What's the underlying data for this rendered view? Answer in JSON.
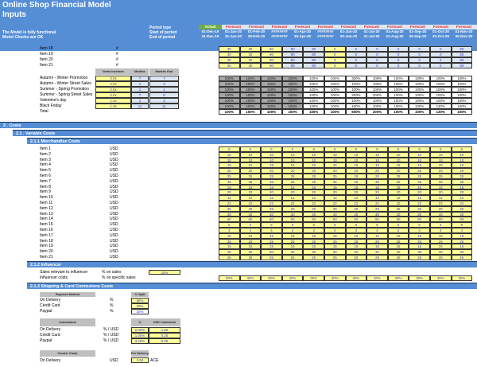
{
  "header": {
    "title": "Online Shop Financial Model",
    "subtitle": "Inputs",
    "status1": "The Model is fully functional",
    "status2": "Model Checks are OK",
    "period_type_label": "Period type",
    "start_label": "Start of period",
    "end_label": "End of period"
  },
  "periods": {
    "types": [
      "Actual",
      "Forecast",
      "Forecast",
      "Forecast",
      "Forecast",
      "Forecast",
      "Forecast",
      "Forecast",
      "Forecast",
      "Forecast",
      "Forecast",
      "Forecast",
      "Forecast"
    ],
    "starts": [
      "01-Dec-19",
      "01-Jan-20",
      "01-Feb-20",
      "########",
      "01-Apr-20",
      "########",
      "01-Jun-20",
      "01-Jul-20",
      "01-Aug-20",
      "01-Sep-20",
      "01-Oct-20",
      "01-Nov-20",
      "01-Dec-20"
    ],
    "ends": [
      "31-Dec-19",
      "31-Jan-20",
      "29-Feb-20",
      "########",
      "30-Apr-20",
      "########",
      "30-Jun-20",
      "31-Jul-20",
      "31-Aug-20",
      "30-Sep-20",
      "31-Oct-20",
      "30-Nov-20",
      "31-Dec-20"
    ]
  },
  "item_units": {
    "rows": [
      {
        "label": "Item 18",
        "unit": "#",
        "values": [
          "30",
          "30",
          "90",
          "90",
          "90",
          "0",
          "0",
          "0",
          "0",
          "0",
          "0",
          "90"
        ]
      },
      {
        "label": "Item 19",
        "unit": "#",
        "values": [
          "30",
          "30",
          "90",
          "90",
          "90",
          "0",
          "0",
          "0",
          "0",
          "0",
          "0",
          "90"
        ]
      },
      {
        "label": "Item 20",
        "unit": "#",
        "values": [
          "30",
          "30",
          "90",
          "90",
          "90",
          "0",
          "0",
          "0",
          "0",
          "0",
          "0",
          "90"
        ]
      },
      {
        "label": "Item 21",
        "unit": "#",
        "values": [
          "30",
          "30",
          "90",
          "90",
          "90",
          "0",
          "0",
          "0",
          "0",
          "0",
          "0",
          "90"
        ]
      }
    ]
  },
  "promotions": {
    "headers": [
      "Items increase",
      "Months Start",
      "Months End"
    ],
    "rows": [
      {
        "label": "Autumn - Winter Promotion",
        "increase": "3.0x",
        "start": "7",
        "end": "7",
        "values": [
          "100%",
          "100%",
          "100%",
          "100%",
          "100%",
          "100%",
          "300%",
          "100%",
          "100%",
          "100%",
          "100%",
          "100%"
        ]
      },
      {
        "label": "Autumn - Winter Street Sales",
        "increase": "2.0x",
        "start": "1",
        "end": "2",
        "values": [
          "100%",
          "100%",
          "100%",
          "100%",
          "100%",
          "100%",
          "100%",
          "100%",
          "100%",
          "100%",
          "100%",
          "100%"
        ]
      },
      {
        "label": "Summer - Spring Promotion",
        "increase": "2.0x",
        "start": "1",
        "end": "1",
        "values": [
          "100%",
          "100%",
          "100%",
          "100%",
          "100%",
          "100%",
          "100%",
          "100%",
          "100%",
          "100%",
          "100%",
          "100%"
        ]
      },
      {
        "label": "Summer - Spring Street Sales",
        "increase": "2.0x",
        "start": "7",
        "end": "8",
        "values": [
          "100%",
          "100%",
          "100%",
          "100%",
          "100%",
          "100%",
          "200%",
          "200%",
          "100%",
          "100%",
          "100%",
          "100%"
        ]
      },
      {
        "label": "Valentine's day",
        "increase": "1.2x",
        "start": "2",
        "end": "2",
        "values": [
          "100%",
          "100%",
          "100%",
          "100%",
          "100%",
          "100%",
          "100%",
          "100%",
          "100%",
          "100%",
          "100%",
          "100%"
        ]
      },
      {
        "label": "Black Friday",
        "increase": "1.3x",
        "start": "11",
        "end": "11",
        "values": [
          "100%",
          "100%",
          "100%",
          "100%",
          "100%",
          "100%",
          "100%",
          "100%",
          "100%",
          "100%",
          "130%",
          "100%"
        ]
      }
    ],
    "total_label": "Total",
    "totals": [
      "100%",
      "100%",
      "100%",
      "100%",
      "100%",
      "100%",
      "600%",
      "200%",
      "100%",
      "100%",
      "130%",
      "100%"
    ]
  },
  "sections": {
    "costs": "2 . Costs",
    "variable": "2.1 . Variable Costs",
    "merch": "2.1.1 Merchandise Costs",
    "influencer": "2.1.2 Influencer",
    "shipping": "2.1.3 Shipping & Card Comissions Costs"
  },
  "merch_costs": {
    "unit": "USD",
    "rows": [
      {
        "label": "Item 1",
        "v": "6"
      },
      {
        "label": "Item 2",
        "v": "10"
      },
      {
        "label": "Item 3",
        "v": "10"
      },
      {
        "label": "Item 4",
        "v": "15"
      },
      {
        "label": "Item 5",
        "v": "20"
      },
      {
        "label": "Item 6",
        "v": "25"
      },
      {
        "label": "Item 7",
        "v": "35"
      },
      {
        "label": "Item 8",
        "v": "15"
      },
      {
        "label": "Item 9",
        "v": "20"
      },
      {
        "label": "Item 10",
        "v": "12"
      },
      {
        "label": "Item 11",
        "v": "22"
      },
      {
        "label": "Item 12",
        "v": "25"
      },
      {
        "label": "Item 13",
        "v": "40"
      },
      {
        "label": "Item 14",
        "v": "60"
      },
      {
        "label": "Item 15",
        "v": "5"
      },
      {
        "label": "Item 16",
        "v": "4"
      },
      {
        "label": "Item 17",
        "v": "15"
      },
      {
        "label": "Item 18",
        "v": "25"
      },
      {
        "label": "Item 19",
        "v": "15"
      },
      {
        "label": "Item 20",
        "v": "30"
      },
      {
        "label": "Item 21",
        "v": "25"
      }
    ]
  },
  "influencer": {
    "row1_label": "Sales relevant to influencer",
    "row1_unit": "% on sales",
    "row1_value": "10%",
    "row2_label": "Influencer costs",
    "row2_unit": "% on specific sales",
    "row2_values": [
      "30%",
      "30%",
      "30%",
      "30%",
      "30%",
      "30%",
      "30%",
      "30%",
      "30%",
      "30%",
      "30%",
      "30%"
    ]
  },
  "shipping": {
    "payment_header": "Payment Method",
    "split_header": "% Split",
    "payment_rows": [
      {
        "label": "On Delivery",
        "unit": "%",
        "split": "50%"
      },
      {
        "label": "Credit Card",
        "unit": "%",
        "split": "30%"
      },
      {
        "label": "Paypal",
        "unit": "%",
        "split": "20%"
      }
    ],
    "commissions_header": "Comissions",
    "pct_header": "% Comission",
    "usd_header": "USD Comission",
    "commission_rows": [
      {
        "label": "On Delivery",
        "unit": "% / USD",
        "pct": "0.00%",
        "usd": "1.50"
      },
      {
        "label": "Credit Card",
        "unit": "% / USD",
        "pct": "1.40%",
        "usd": "0.25"
      },
      {
        "label": "Paypal",
        "unit": "% / USD",
        "pct": "3.40%",
        "usd": "0.35"
      }
    ],
    "courier_header": "Courier Costs",
    "per_delivery_header": "Per Delivery",
    "courier_rows": [
      {
        "label": "On Delivery",
        "unit": "USD",
        "value": "3.50",
        "note": "ACE"
      }
    ]
  }
}
